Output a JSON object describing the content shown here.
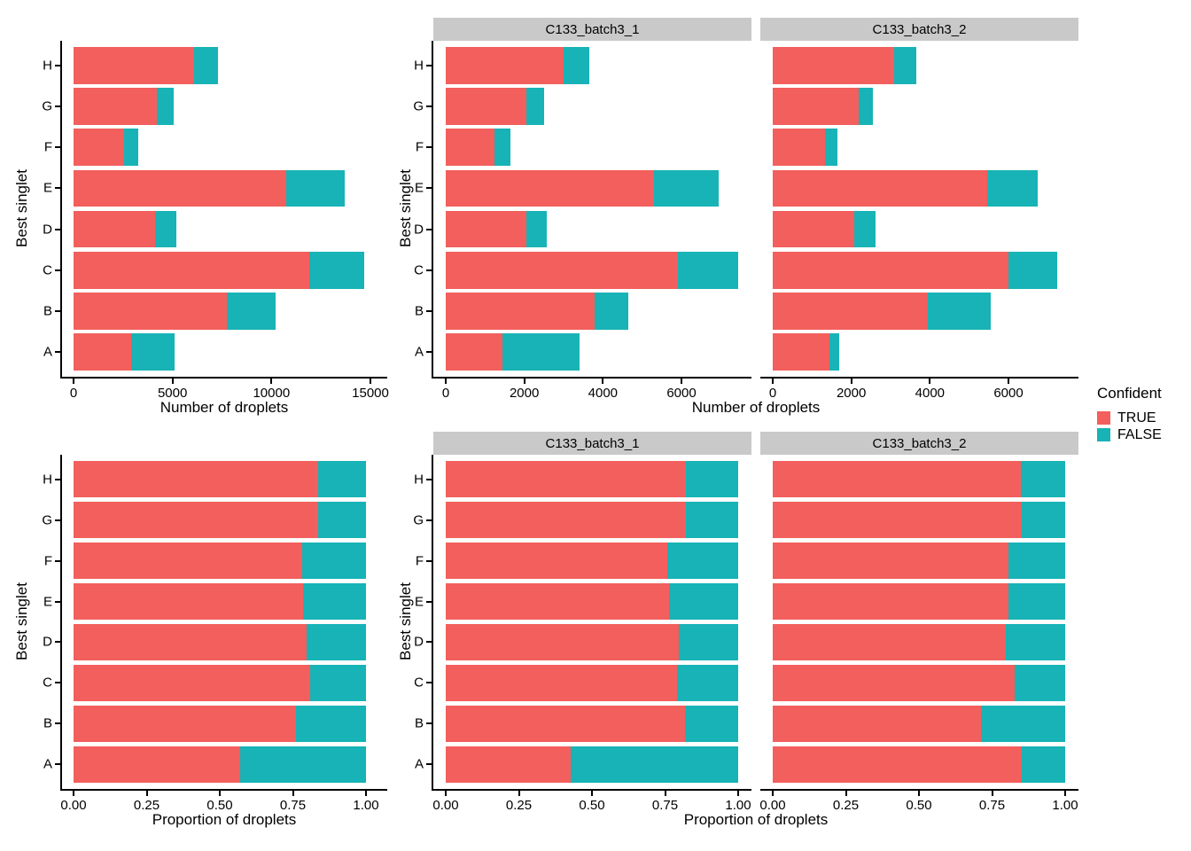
{
  "colors": {
    "true_fill": "#F25F5C",
    "false_fill": "#17B3B6",
    "strip_bg": "#C9C9C9",
    "axis": "#000000",
    "background": "#FFFFFF"
  },
  "labels": {
    "y_axis_title": "Best singlet",
    "counts_x_title": "Number of droplets",
    "props_x_title": "Proportion of droplets",
    "facets": [
      "C133_batch3_1",
      "C133_batch3_2"
    ]
  },
  "legend": {
    "title": "Confident",
    "entries": [
      {
        "label": "TRUE",
        "color_key": "true_fill"
      },
      {
        "label": "FALSE",
        "color_key": "false_fill"
      }
    ]
  },
  "chart_data": {
    "type": "bar",
    "orientation": "horizontal",
    "stacked": true,
    "categories_bottom_to_top": [
      "A",
      "B",
      "C",
      "D",
      "E",
      "F",
      "G",
      "H"
    ],
    "series": [
      "TRUE",
      "FALSE"
    ],
    "legend_title": "Confident",
    "panels": [
      {
        "id": "counts_overall",
        "kind": "counts",
        "facet": null,
        "x_label": "Number of droplets",
        "y_label": "Best singlet",
        "x_ticks": [
          0,
          5000,
          10000,
          15000
        ],
        "x_tick_labels": [
          "0",
          "5000",
          "10000",
          "15000"
        ],
        "true_counts": [
          2900,
          7750,
          11900,
          4130,
          10750,
          2570,
          4230,
          6100
        ],
        "false_counts": [
          2200,
          2450,
          2800,
          1050,
          2950,
          720,
          830,
          1200
        ]
      },
      {
        "id": "counts_batch1",
        "kind": "counts",
        "facet": "C133_batch3_1",
        "x_label": "Number of droplets",
        "y_label": "Best singlet",
        "x_ticks": [
          0,
          2000,
          4000,
          6000
        ],
        "x_tick_labels": [
          "0",
          "2000",
          "4000",
          "6000"
        ],
        "true_counts": [
          1450,
          3800,
          5900,
          2050,
          5300,
          1250,
          2050,
          3000
        ],
        "false_counts": [
          1950,
          850,
          1550,
          520,
          1650,
          400,
          450,
          650
        ]
      },
      {
        "id": "counts_batch2",
        "kind": "counts",
        "facet": "C133_batch3_2",
        "x_label": "Number of droplets",
        "y_label": "Best singlet",
        "x_ticks": [
          0,
          2000,
          4000,
          6000
        ],
        "x_tick_labels": [
          "0",
          "2000",
          "4000",
          "6000"
        ],
        "true_counts": [
          1450,
          3950,
          6000,
          2080,
          5450,
          1320,
          2180,
          3100
        ],
        "false_counts": [
          250,
          1600,
          1250,
          530,
          1300,
          320,
          380,
          550
        ]
      },
      {
        "id": "props_overall",
        "kind": "proportion",
        "facet": null,
        "x_label": "Proportion of droplets",
        "y_label": "Best singlet",
        "x_ticks": [
          0,
          0.25,
          0.5,
          0.75,
          1
        ],
        "x_tick_labels": [
          "0.00",
          "0.25",
          "0.50",
          "0.75",
          "1.00"
        ],
        "prop_true": [
          0.569,
          0.76,
          0.81,
          0.797,
          0.785,
          0.781,
          0.836,
          0.836
        ]
      },
      {
        "id": "props_batch1",
        "kind": "proportion",
        "facet": "C133_batch3_1",
        "x_label": "Proportion of droplets",
        "y_label": "Best singlet",
        "x_ticks": [
          0,
          0.25,
          0.5,
          0.75,
          1
        ],
        "x_tick_labels": [
          "0.00",
          "0.25",
          "0.50",
          "0.75",
          "1.00"
        ],
        "prop_true": [
          0.426,
          0.817,
          0.792,
          0.798,
          0.763,
          0.758,
          0.82,
          0.822
        ]
      },
      {
        "id": "props_batch2",
        "kind": "proportion",
        "facet": "C133_batch3_2",
        "x_label": "Proportion of droplets",
        "y_label": "Best singlet",
        "x_ticks": [
          0,
          0.25,
          0.5,
          0.75,
          1
        ],
        "x_tick_labels": [
          "0.00",
          "0.25",
          "0.50",
          "0.75",
          "1.00"
        ],
        "prop_true": [
          0.853,
          0.712,
          0.828,
          0.797,
          0.807,
          0.805,
          0.852,
          0.849
        ]
      }
    ]
  }
}
